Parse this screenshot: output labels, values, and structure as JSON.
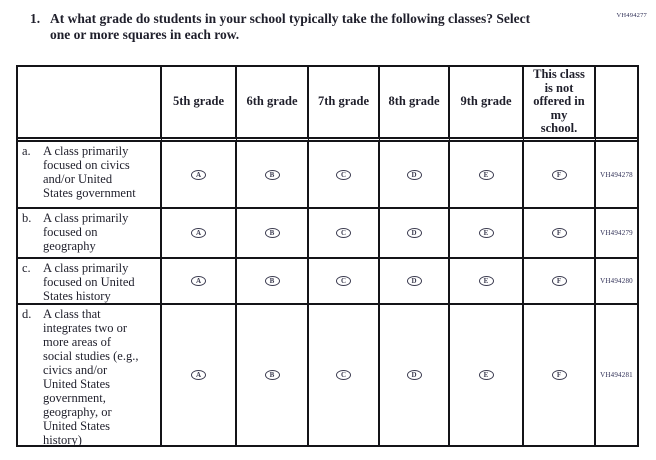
{
  "question": {
    "number": "1.",
    "lines": [
      "At what grade do students in your school typically take the following classes? Select",
      "one or more squares in each row."
    ]
  },
  "form_code_top_right": "VH494277",
  "table": {
    "column_headers": [
      "5th grade",
      "6th grade",
      "7th grade",
      "8th grade",
      "9th grade",
      "This class\nis not\noffered in\nmy\nschool."
    ],
    "rows": [
      {
        "prefix": "a.",
        "label": "A class primarily\nfocused on civics\nand/or United\nStates government",
        "options": [
          "A",
          "B",
          "C",
          "D",
          "E",
          "F"
        ],
        "code": "VH494278"
      },
      {
        "prefix": "b.",
        "label": "A class primarily\nfocused on\ngeography",
        "options": [
          "A",
          "B",
          "C",
          "D",
          "E",
          "F"
        ],
        "code": "VH494279"
      },
      {
        "prefix": "c.",
        "label": "A class primarily\nfocused on United\nStates history",
        "options": [
          "A",
          "B",
          "C",
          "D",
          "E",
          "F"
        ],
        "code": "VH494280"
      },
      {
        "prefix": "d.",
        "label": "A class that\nintegrates two or\nmore areas of\nsocial studies (e.g.,\ncivics and/or\nUnited States\ngovernment,\ngeography, or\nUnited States\nhistory)",
        "options": [
          "A",
          "B",
          "C",
          "D",
          "E",
          "F"
        ],
        "code": "VH494281"
      }
    ]
  },
  "colors": {
    "text": "#1f1f2b",
    "border": "#141418",
    "code_text": "#2e2e55"
  }
}
